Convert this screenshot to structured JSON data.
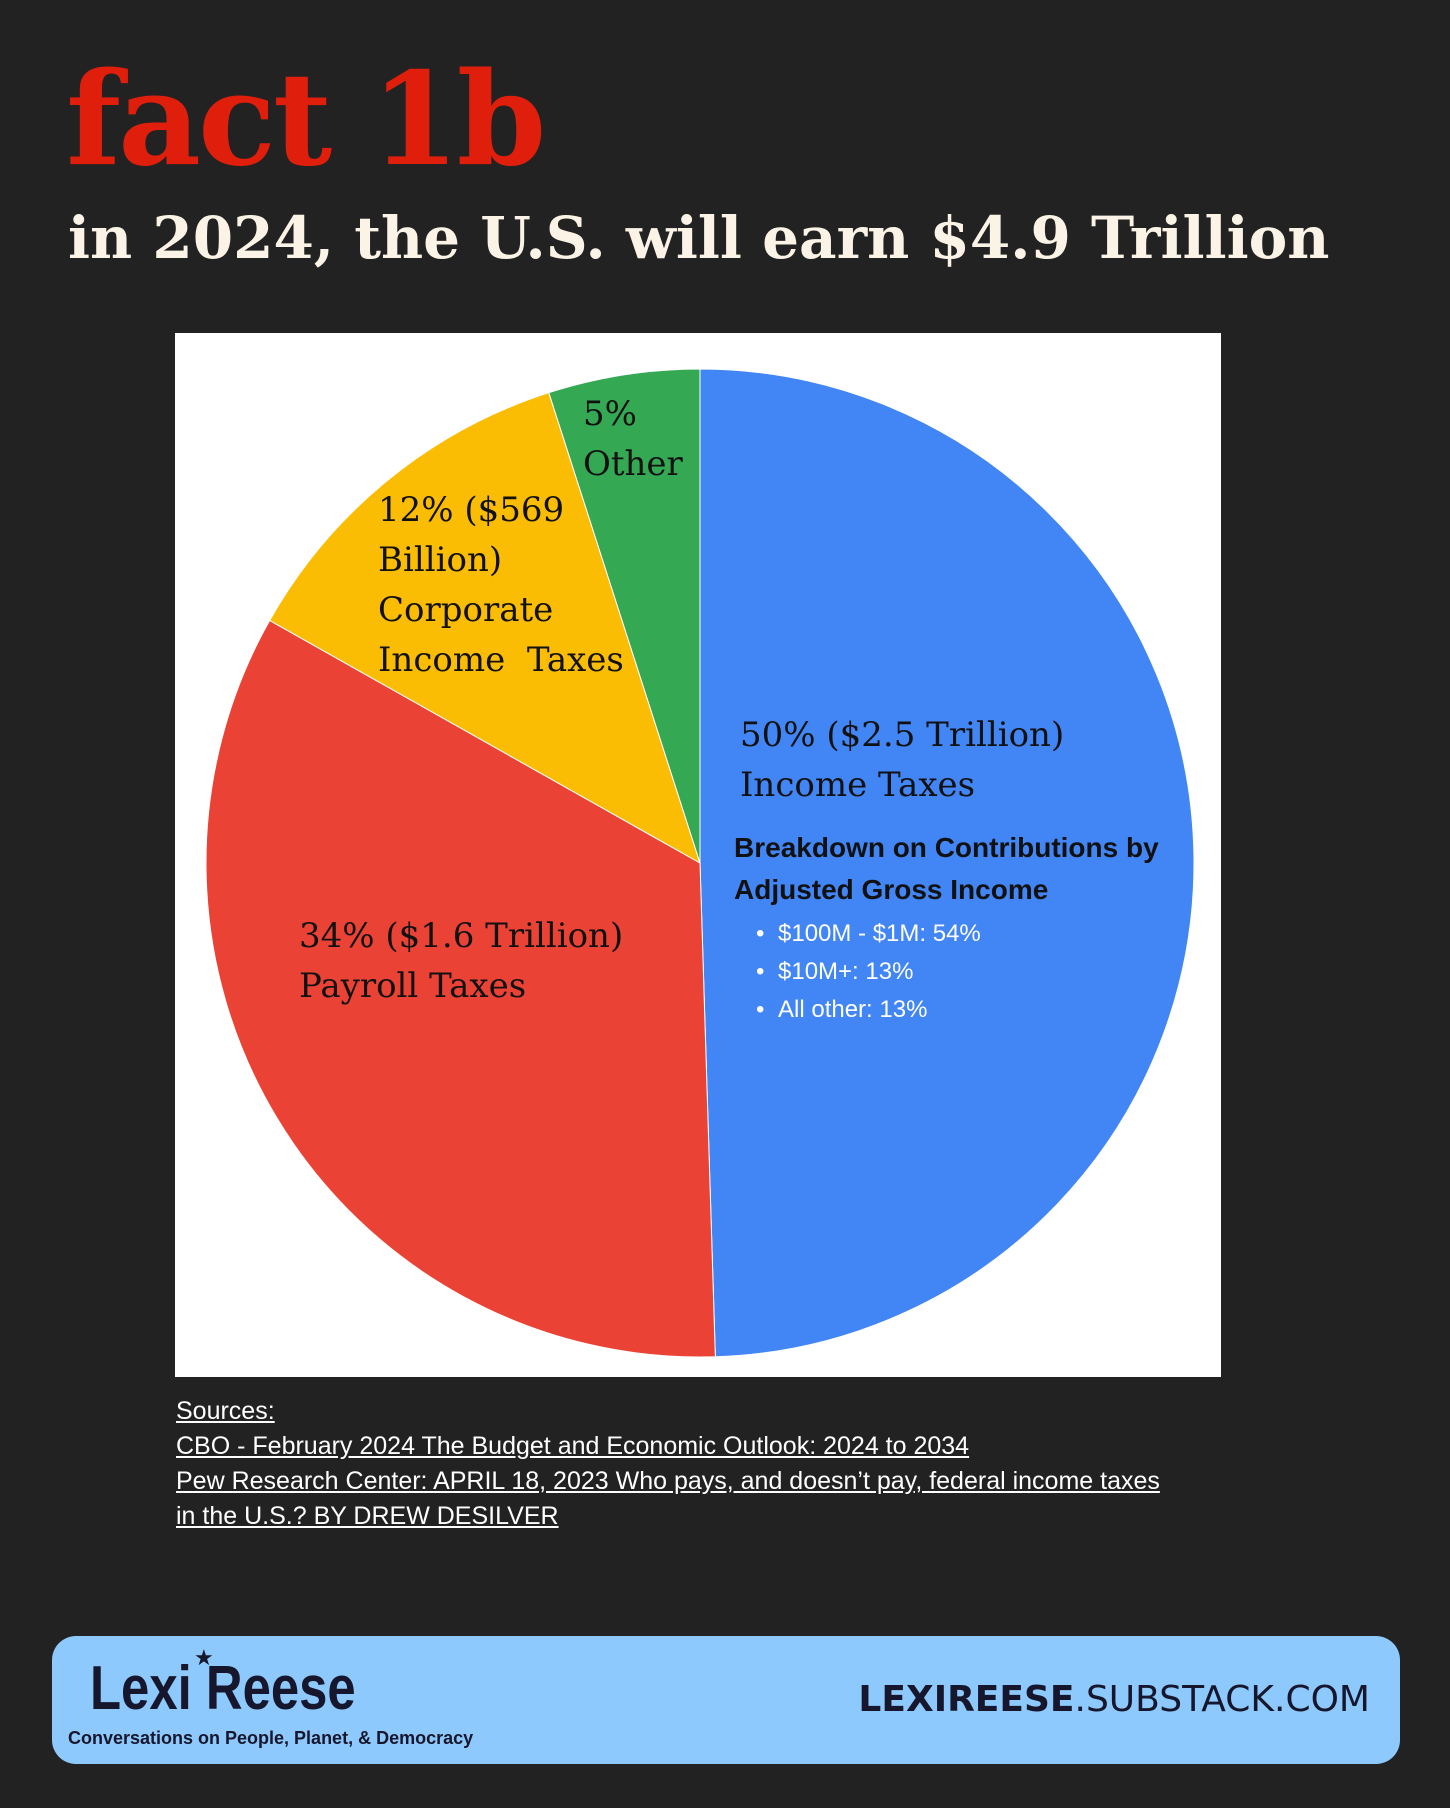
{
  "header": {
    "title": "fact 1b",
    "subtitle": "in 2024, the U.S. will earn $4.9 Trillion"
  },
  "chart_data": {
    "type": "pie",
    "slices": [
      {
        "id": "income",
        "value": 50,
        "color": "#4285f4",
        "label_lines": [
          "50% ($2.5 Trillion)",
          "Income Taxes"
        ]
      },
      {
        "id": "payroll",
        "value": 34,
        "color": "#ea4335",
        "label_lines": [
          "34% ($1.6 Trillion)",
          "Payroll Taxes"
        ]
      },
      {
        "id": "corp",
        "value": 12,
        "color": "#fbbc04",
        "label_lines": [
          "12% ($569",
          "Billion)",
          "Corporate",
          "Income  Taxes"
        ]
      },
      {
        "id": "other",
        "value": 5,
        "color": "#34a853",
        "label_lines": [
          "5%",
          "Other"
        ]
      }
    ],
    "breakdown": {
      "title_lines": [
        "Breakdown on Contributions by",
        "Adjusted Gross Income"
      ],
      "items": [
        "$100M - $1M: 54%",
        "$10M+: 13%",
        "All other: 13%"
      ]
    }
  },
  "sources": {
    "heading": "Sources: ",
    "lines": [
      "CBO - February 2024 The Budget and Economic Outlook: 2024 to 2034",
      "Pew Research Center: APRIL 18, 2023 Who pays, and doesn’t pay, federal income taxes ",
      "in the U.S.? BY DREW DESILVER "
    ]
  },
  "footer": {
    "brand_name": "Lexi Reese",
    "brand_star": "★",
    "tagline": "Conversations on People, Planet, & Democracy",
    "site_bold": "LEXIREESE",
    "site_rest": ".SUBSTACK.COM"
  }
}
